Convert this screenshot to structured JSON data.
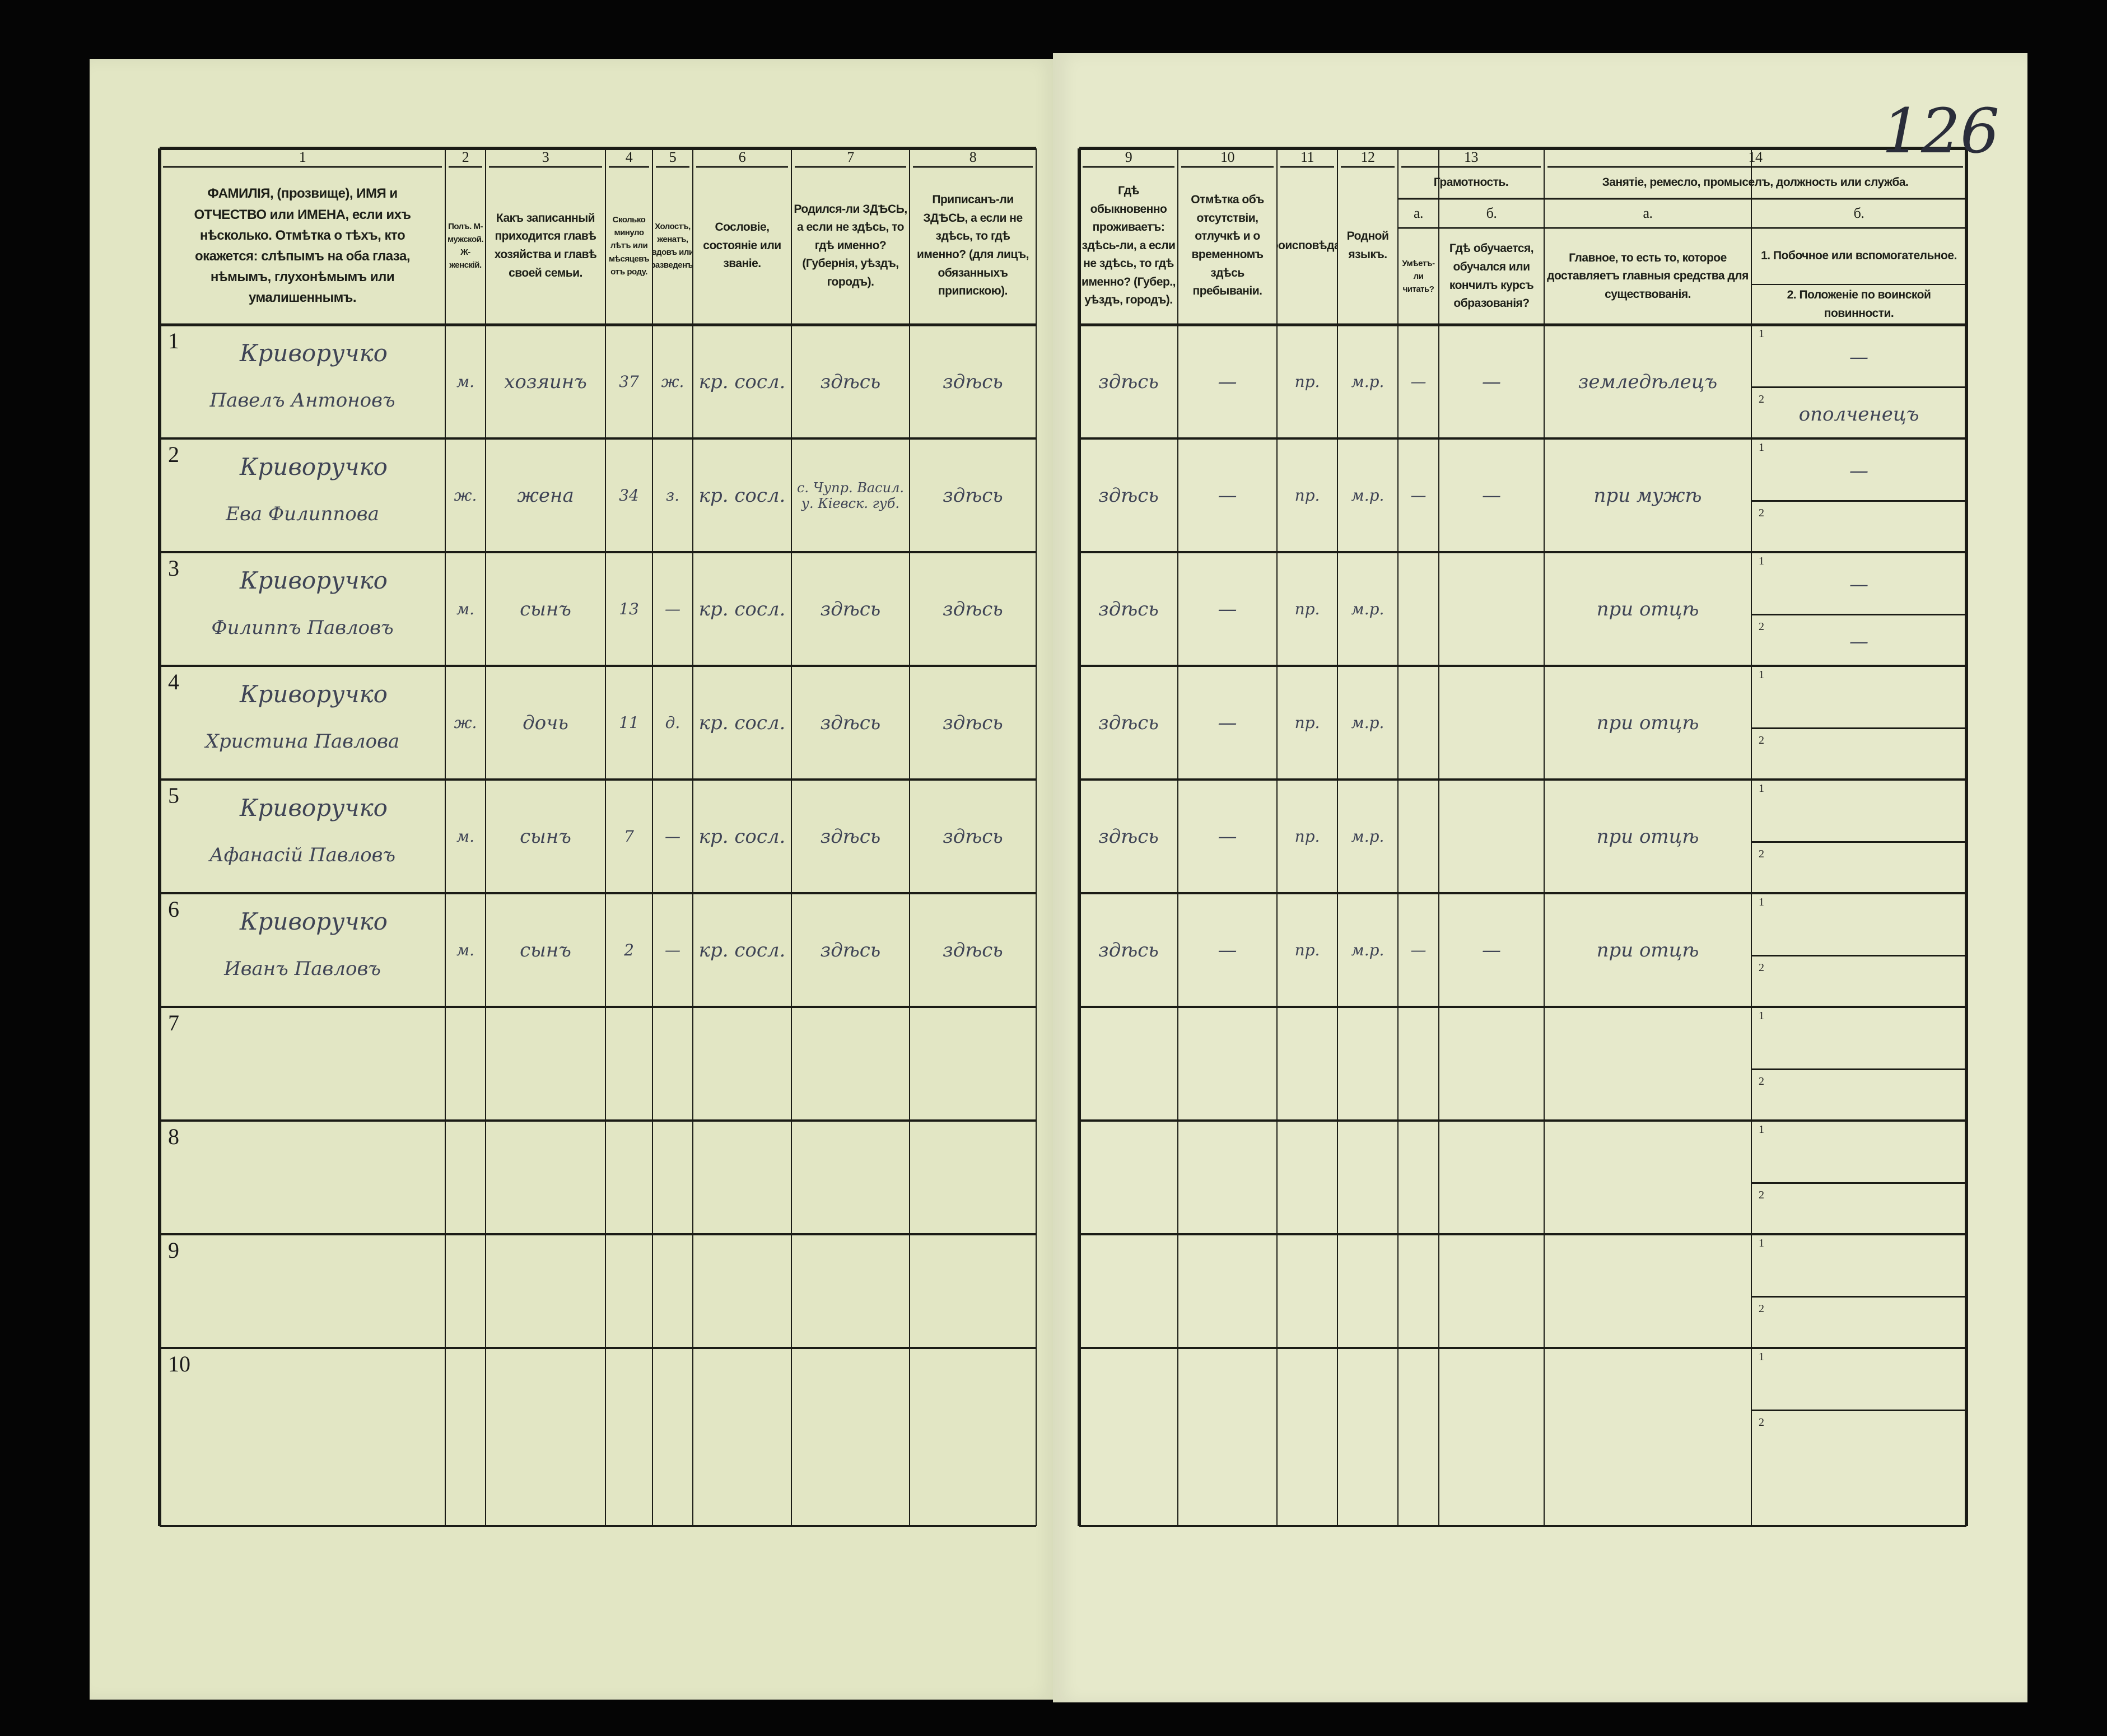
{
  "page_number": "126",
  "columns": [
    {
      "num": "1",
      "text": "ФАМИЛІЯ, (прозвище), ИМЯ и ОТЧЕСТВО или ИМЕНА, если ихъ нѣсколько. Отмѣтка о тѣхъ, кто окажется: слѣпымъ на оба глаза, нѣмымъ, глухонѣмымъ или умалишеннымъ."
    },
    {
      "num": "2",
      "text": "Полъ. М-мужской. Ж-женскій."
    },
    {
      "num": "3",
      "text": "Какъ записанный приходится главѣ хозяйства и главѣ своей семьи."
    },
    {
      "num": "4",
      "text": "Сколько минуло лѣтъ или мѣсяцевъ отъ роду."
    },
    {
      "num": "5",
      "text": "Холостъ, женатъ, вдовъ или разведенъ."
    },
    {
      "num": "6",
      "text": "Сословіе, состояніе или званіе."
    },
    {
      "num": "7",
      "text": "Родился-ли ЗДѢСЬ, а если не здѣсь, то гдѣ именно? (Губернія, уѣздъ, городъ)."
    },
    {
      "num": "8",
      "text": "Приписанъ-ли ЗДѢСЬ, а если не здѣсь, то гдѣ именно? (для лицъ, обязанныхъ припискою)."
    },
    {
      "num": "9",
      "text": "Гдѣ обыкновенно проживаетъ: здѣсь-ли, а если не здѣсь, то гдѣ именно? (Губер., уѣздъ, городъ)."
    },
    {
      "num": "10",
      "text": "Отмѣтка объ отсутствіи, отлучкѣ и о временномъ здѣсь пребываніи."
    },
    {
      "num": "11",
      "text": "Вѣроисповѣданіе."
    },
    {
      "num": "12",
      "text": "Родной языкъ."
    },
    {
      "num": "13",
      "group": "Грамотность.",
      "sub": "а.",
      "text": "Умѣетъ-ли читать?"
    },
    {
      "num": "",
      "group": "",
      "sub": "б.",
      "text": "Гдѣ обучается, обучался или кончилъ курсъ образованія?"
    },
    {
      "num": "14",
      "group": "Занятіе, ремесло, промыселъ, должность или служба.",
      "sub": "а.",
      "text": "Главное, то есть то, которое доставляетъ главныя средства для существованія."
    },
    {
      "num": "",
      "group": "",
      "sub": "б.",
      "text": "1. Побочное или вспомогательное.",
      "text2": "2. Положеніе по воинской повинности."
    }
  ],
  "sub_labels": [
    "1",
    "2"
  ],
  "rows": [
    {
      "n": "1",
      "surname": "Криворучко",
      "name": "Павелъ Антоновъ",
      "sex": "м.",
      "relation": "хозяинъ",
      "age": "37",
      "marital": "ж.",
      "estate": "кр. сосл.",
      "born": "здѣсь",
      "registered": "здѣсь",
      "residence": "здѣсь",
      "absence": "—",
      "religion": "пр.",
      "language": "м.р.",
      "lit_a": "—",
      "lit_b": "—",
      "occ_main": "земледѣлецъ",
      "occ_side": "—",
      "military": "ополченецъ"
    },
    {
      "n": "2",
      "surname": "Криворучко",
      "name": "Ева Филиппова",
      "sex": "ж.",
      "relation": "жена",
      "age": "34",
      "marital": "з.",
      "estate": "кр. сосл.",
      "born": "с. Чупр. Васил. у. Кіевск. губ.",
      "registered": "здѣсь",
      "residence": "здѣсь",
      "absence": "—",
      "religion": "пр.",
      "language": "м.р.",
      "lit_a": "—",
      "lit_b": "—",
      "occ_main": "при мужѣ",
      "occ_side": "—",
      "military": ""
    },
    {
      "n": "3",
      "surname": "Криворучко",
      "name": "Филиппъ Павловъ",
      "sex": "м.",
      "relation": "сынъ",
      "age": "13",
      "marital": "—",
      "estate": "кр. сосл.",
      "born": "здѣсь",
      "registered": "здѣсь",
      "residence": "здѣсь",
      "absence": "—",
      "religion": "пр.",
      "language": "м.р.",
      "lit_a": "",
      "lit_b": "",
      "occ_main": "при отцѣ",
      "occ_side": "—",
      "military": "—"
    },
    {
      "n": "4",
      "surname": "Криворучко",
      "name": "Христина Павлова",
      "sex": "ж.",
      "relation": "дочь",
      "age": "11",
      "marital": "д.",
      "estate": "кр. сосл.",
      "born": "здѣсь",
      "registered": "здѣсь",
      "residence": "здѣсь",
      "absence": "—",
      "religion": "пр.",
      "language": "м.р.",
      "lit_a": "",
      "lit_b": "",
      "occ_main": "при отцѣ",
      "occ_side": "",
      "military": ""
    },
    {
      "n": "5",
      "surname": "Криворучко",
      "name": "Афанасій Павловъ",
      "sex": "м.",
      "relation": "сынъ",
      "age": "7",
      "marital": "—",
      "estate": "кр. сосл.",
      "born": "здѣсь",
      "registered": "здѣсь",
      "residence": "здѣсь",
      "absence": "—",
      "religion": "пр.",
      "language": "м.р.",
      "lit_a": "",
      "lit_b": "",
      "occ_main": "при отцѣ",
      "occ_side": "",
      "military": ""
    },
    {
      "n": "6",
      "surname": "Криворучко",
      "name": "Иванъ Павловъ",
      "sex": "м.",
      "relation": "сынъ",
      "age": "2",
      "marital": "—",
      "estate": "кр. сосл.",
      "born": "здѣсь",
      "registered": "здѣсь",
      "residence": "здѣсь",
      "absence": "—",
      "religion": "пр.",
      "language": "м.р.",
      "lit_a": "—",
      "lit_b": "—",
      "occ_main": "при отцѣ",
      "occ_side": "",
      "military": ""
    },
    {
      "n": "7"
    },
    {
      "n": "8"
    },
    {
      "n": "9"
    },
    {
      "n": "10"
    }
  ]
}
